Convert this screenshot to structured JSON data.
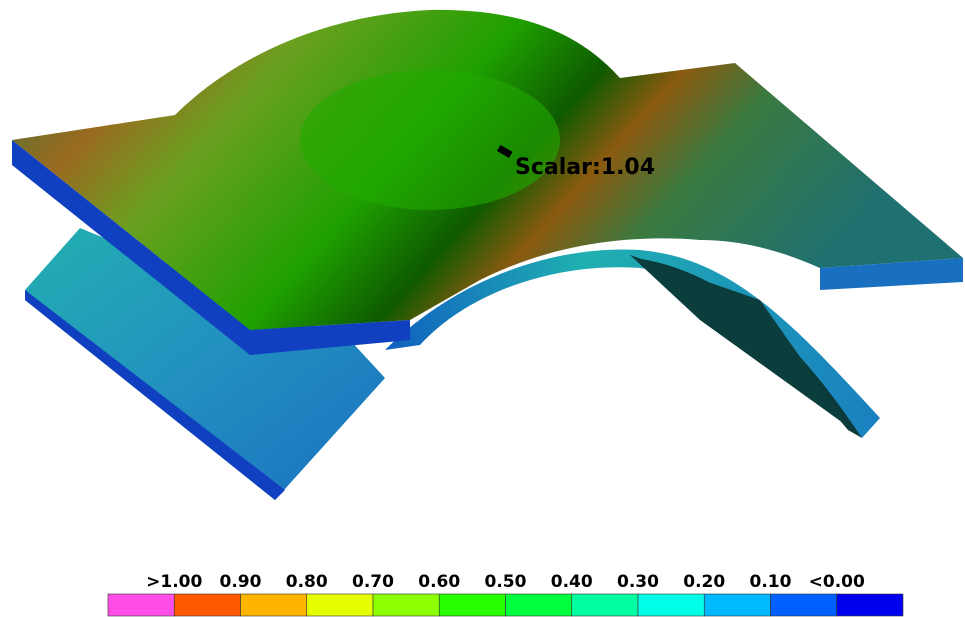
{
  "annotation": "Scalar:1.04",
  "legend": {
    "labels": [
      ">1.00",
      "0.90",
      "0.80",
      "0.70",
      "0.60",
      "0.50",
      "0.40",
      "0.30",
      "0.20",
      "0.10",
      "<0.00"
    ],
    "colors": [
      "#ff4ee8",
      "#ff5a00",
      "#ffb400",
      "#e6ff00",
      "#8cff00",
      "#28ff00",
      "#00ff3c",
      "#00ffa0",
      "#00ffe6",
      "#00b9ff",
      "#0060ff",
      "#0000f0"
    ]
  }
}
